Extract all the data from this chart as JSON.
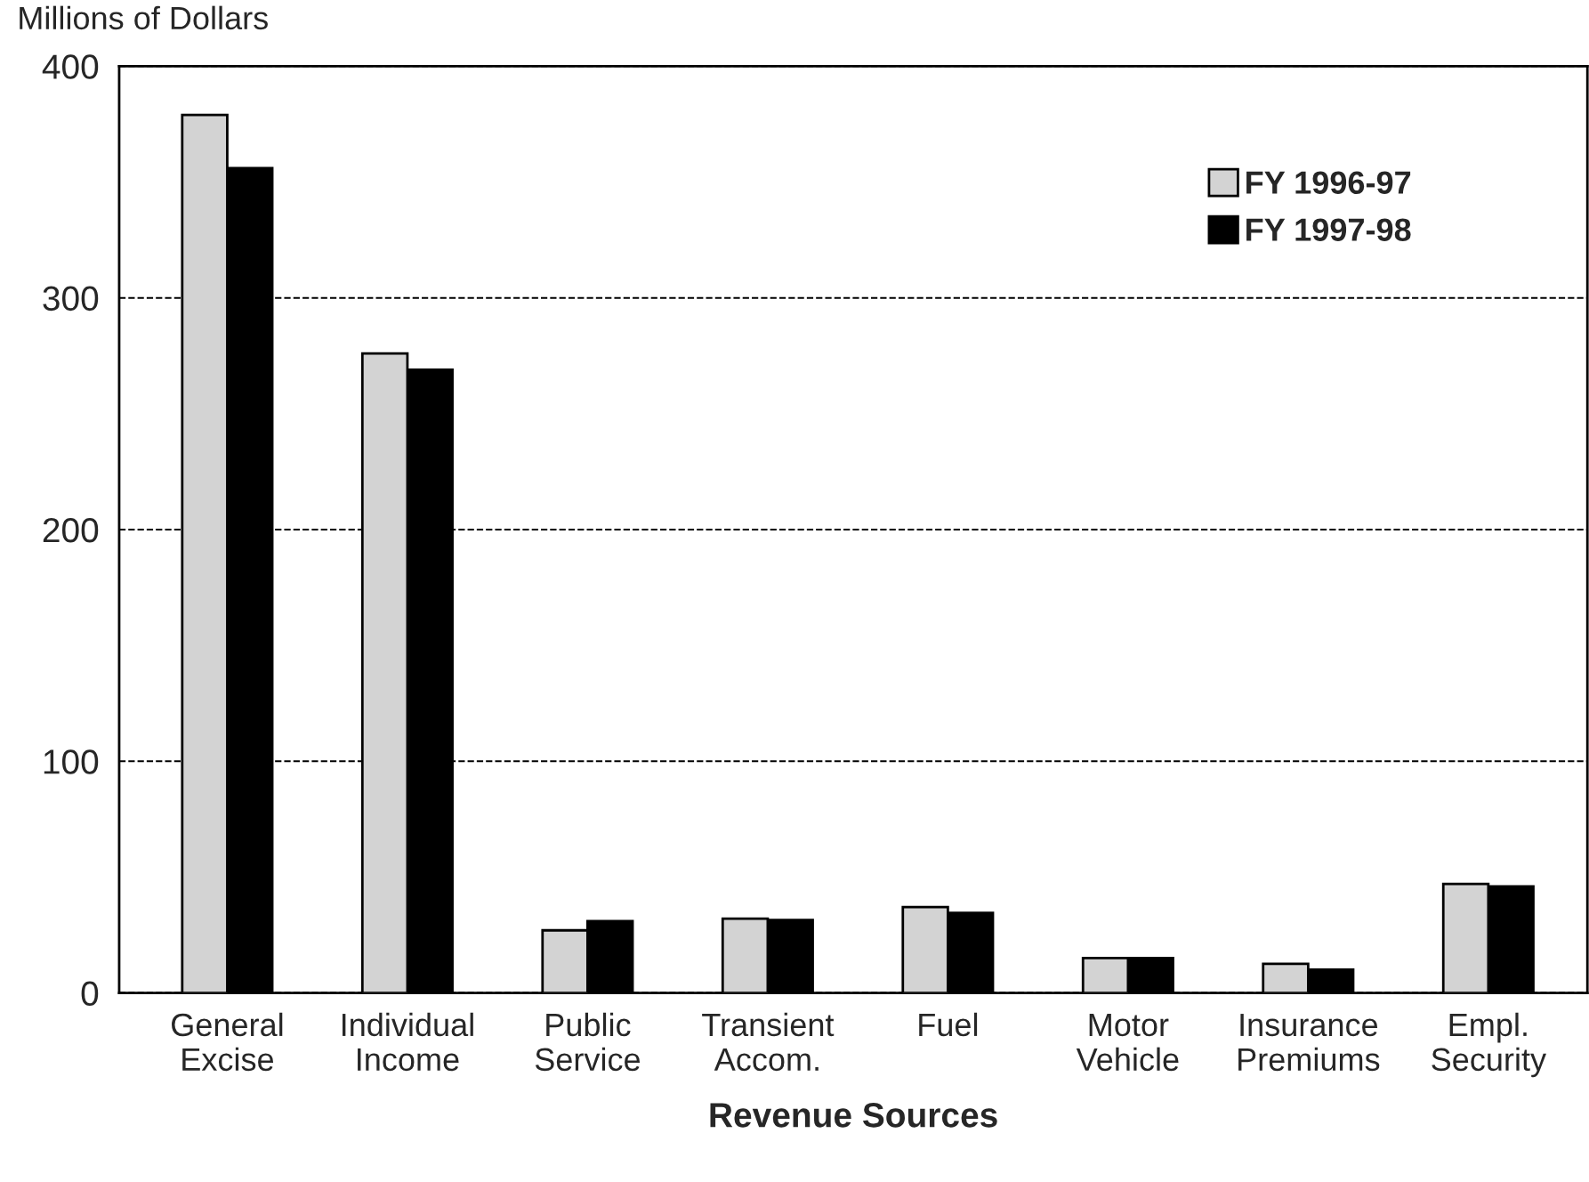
{
  "chart_data": {
    "type": "bar",
    "ylabel": "Millions of Dollars",
    "xlabel": "Revenue Sources",
    "categories": [
      "General\nExcise",
      "Individual\nIncome",
      "Public\nService",
      "Transient\nAccom.",
      "Fuel",
      "Motor\nVehicle",
      "Insurance\nPremiums",
      "Empl.\nSecurity"
    ],
    "series": [
      {
        "name": "FY 1996-97",
        "color": "#d3d3d3",
        "values": [
          379,
          276,
          27,
          32,
          37,
          15,
          12.5,
          47
        ]
      },
      {
        "name": "FY 1997-98",
        "color": "#000000",
        "values": [
          356,
          269,
          31,
          31.5,
          34.5,
          15,
          10,
          46
        ]
      }
    ],
    "ylim": [
      0,
      400
    ],
    "yticks": [
      0,
      100,
      200,
      300,
      400
    ],
    "grid": "y",
    "legend": "top right"
  }
}
